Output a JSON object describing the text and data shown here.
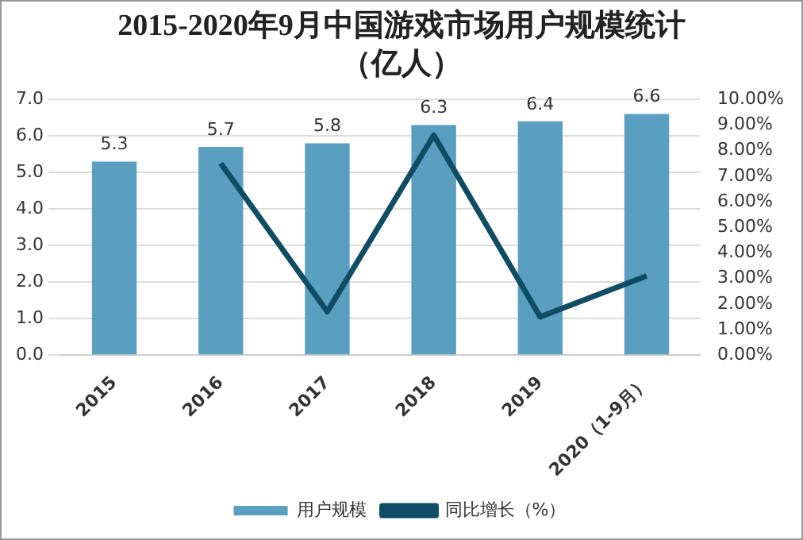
{
  "chart_data": {
    "type": "bar",
    "title": "2015-2020年9月中国游戏市场用户规模统计（亿人）",
    "categories": [
      "2015",
      "2016",
      "2017",
      "2018",
      "2019",
      "2020（1-9月）"
    ],
    "series": [
      {
        "name": "用户规模",
        "color": "#5b9fc0",
        "values": [
          5.3,
          5.7,
          5.8,
          6.3,
          6.4,
          6.6
        ],
        "value_labels": [
          "5.3",
          "5.7",
          "5.8",
          "6.3",
          "6.4",
          "6.6"
        ]
      },
      {
        "name": "同比增长（%）",
        "type": "line",
        "axis": "y2",
        "color": "#0e4d64",
        "values": [
          null,
          7.5,
          1.7,
          8.6,
          1.5,
          3.1
        ]
      }
    ],
    "ylim": [
      0,
      7
    ],
    "yticks": [
      {
        "value": 0,
        "label": "0.0"
      },
      {
        "value": 1,
        "label": "1.0"
      },
      {
        "value": 2,
        "label": "2.0"
      },
      {
        "value": 3,
        "label": "3.0"
      },
      {
        "value": 4,
        "label": "4.0"
      },
      {
        "value": 5,
        "label": "5.0"
      },
      {
        "value": 6,
        "label": "6.0"
      },
      {
        "value": 7,
        "label": "7.0"
      }
    ],
    "y2lim": [
      0,
      10
    ],
    "y2ticks": [
      {
        "value": 0,
        "label": "0.00%"
      },
      {
        "value": 1,
        "label": "1.00%"
      },
      {
        "value": 2,
        "label": "2.00%"
      },
      {
        "value": 3,
        "label": "3.00%"
      },
      {
        "value": 4,
        "label": "4.00%"
      },
      {
        "value": 5,
        "label": "5.00%"
      },
      {
        "value": 6,
        "label": "6.00%"
      },
      {
        "value": 7,
        "label": "7.00%"
      },
      {
        "value": 8,
        "label": "8.00%"
      },
      {
        "value": 9,
        "label": "9.00%"
      },
      {
        "value": 10,
        "label": "10.00%"
      }
    ],
    "grid": "y",
    "legend": "bottom",
    "marker": "none",
    "line_style": "solid"
  }
}
